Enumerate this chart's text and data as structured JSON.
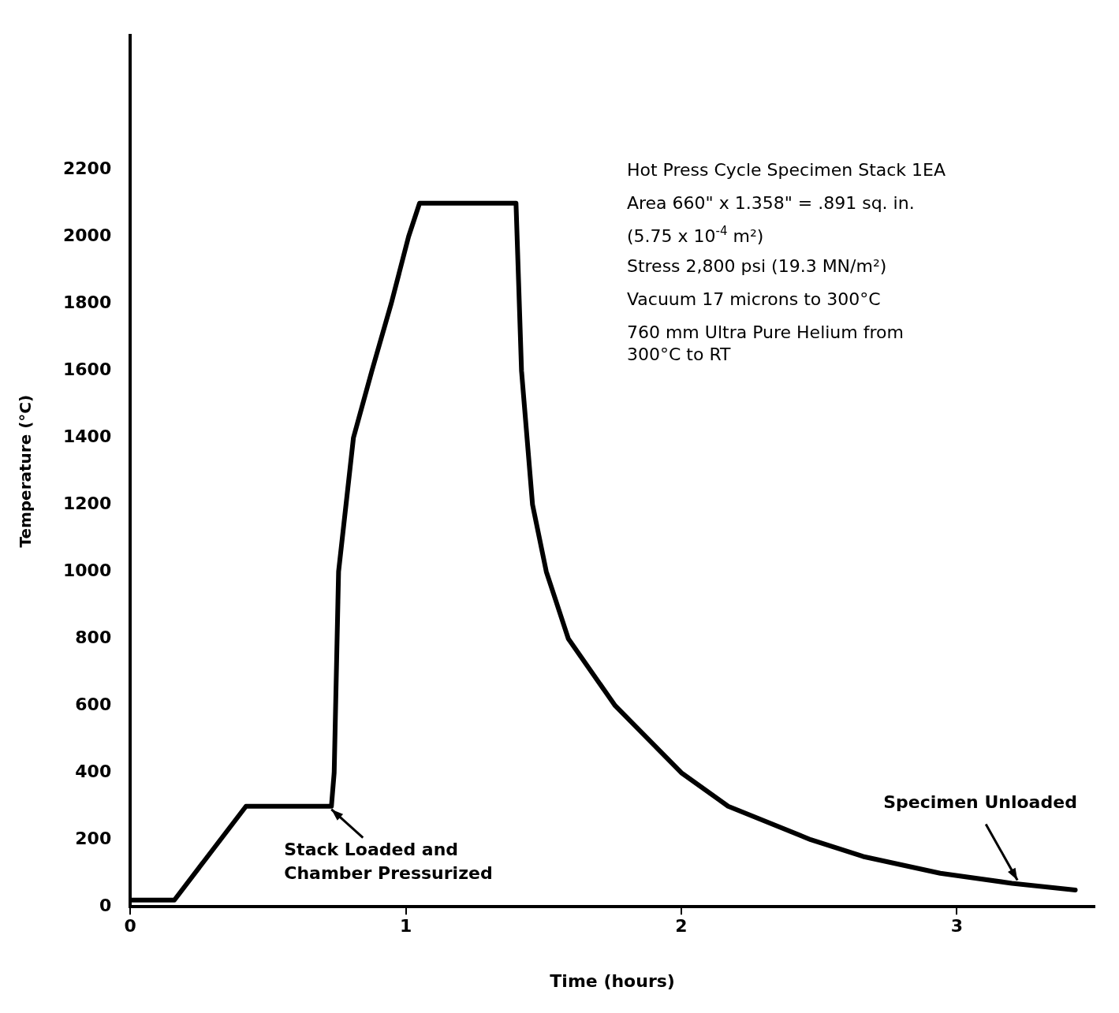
{
  "chart_data": {
    "type": "line",
    "xlabel": "Time (hours)",
    "ylabel": "Temperature (°C)",
    "x": [
      0,
      0.16,
      0.42,
      0.73,
      0.74,
      0.756,
      0.81,
      0.877,
      0.947,
      1.01,
      1.05,
      1.4,
      1.42,
      1.46,
      1.51,
      1.59,
      1.76,
      2.0,
      2.17,
      2.47,
      2.66,
      2.94,
      3.2,
      3.43
    ],
    "series": [
      {
        "color": "#000000",
        "values": [
          20,
          20,
          300,
          300,
          400,
          1000,
          1400,
          1600,
          1800,
          2000,
          2100,
          2100,
          1600,
          1200,
          1000,
          800,
          600,
          400,
          300,
          200,
          150,
          100,
          70,
          50
        ]
      }
    ],
    "xlim": [
      0,
      3.5
    ],
    "xticks": [
      0,
      1,
      2,
      3
    ],
    "ylim": [
      0,
      2600
    ],
    "yticks": [
      0,
      200,
      400,
      600,
      800,
      1000,
      1200,
      1400,
      1600,
      1800,
      2000,
      2200
    ],
    "grid": false,
    "legend": false,
    "marker": "none",
    "line_style": "solid",
    "annotations": [
      "Hot Press Cycle Specimen Stack 1EA",
      "Area 660\" x 1.358\" = .891 sq. in.",
      "(5.75 x 10$^{-4}$ m²)",
      "Stress 2,800 psi (19.3 MN/m²)",
      "Vacuum 17 microns to 300°C",
      "760 mm Ultra Pure Helium from\n300°C to RT",
      {
        "text": "Stack Loaded and\nChamber Pressurized",
        "x": 0.73,
        "y": 300
      },
      {
        "text": "Specimen Unloaded",
        "x": 3.22,
        "y": 70
      }
    ]
  }
}
